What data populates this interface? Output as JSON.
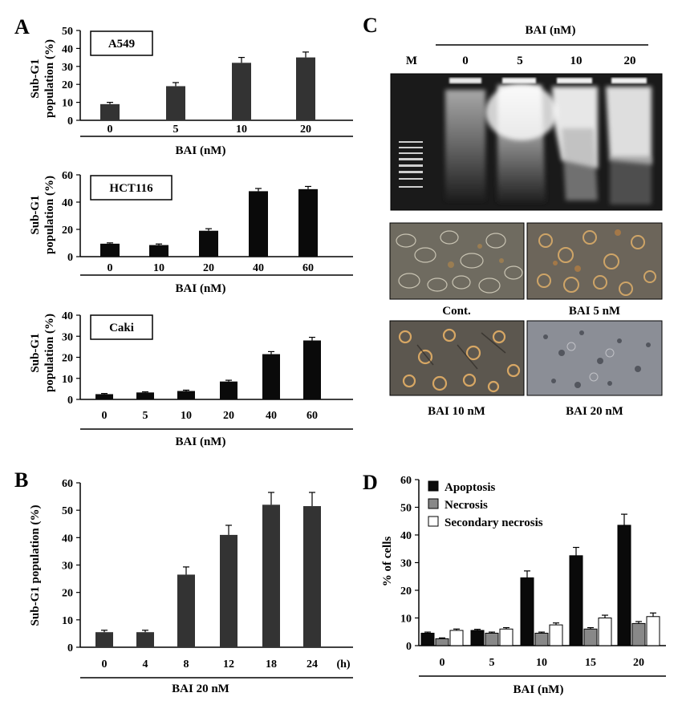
{
  "panel_labels": {
    "A": "A",
    "B": "B",
    "C": "C",
    "D": "D"
  },
  "colors": {
    "dark_bar": "#333333",
    "black_bar": "#0a0a0a",
    "gray_bar": "#888888",
    "white_bar": "#ffffff"
  },
  "chart_data": [
    {
      "id": "A1",
      "type": "bar",
      "box_label": "A549",
      "categories": [
        "0",
        "5",
        "10",
        "20"
      ],
      "values": [
        9,
        19,
        32,
        35
      ],
      "errors": [
        1,
        2,
        3,
        3
      ],
      "ylim": [
        0,
        50
      ],
      "yticks": [
        "0",
        "10",
        "20",
        "30",
        "40",
        "50"
      ],
      "ylabel_line1": "Sub-G1",
      "ylabel_line2": "population (%)",
      "xlabel": "BAI (nM)",
      "bar_color": "#333333"
    },
    {
      "id": "A2",
      "type": "bar",
      "box_label": "HCT116",
      "categories": [
        "0",
        "10",
        "20",
        "40",
        "60"
      ],
      "values": [
        9.5,
        8.5,
        19,
        48,
        49.5
      ],
      "errors": [
        0.6,
        0.8,
        1.5,
        2,
        2
      ],
      "ylim": [
        0,
        60
      ],
      "yticks": [
        "0",
        "20",
        "40",
        "60"
      ],
      "ylabel_line1": "Sub-G1",
      "ylabel_line2": "population (%)",
      "xlabel": "BAI (nM)",
      "bar_color": "#0a0a0a"
    },
    {
      "id": "A3",
      "type": "bar",
      "box_label": "Caki",
      "categories": [
        "0",
        "5",
        "10",
        "20",
        "40",
        "60"
      ],
      "values": [
        2.5,
        3.3,
        4,
        8.5,
        21.5,
        28
      ],
      "errors": [
        0.3,
        0.3,
        0.4,
        0.6,
        1.2,
        1.5
      ],
      "ylim": [
        0,
        40
      ],
      "yticks": [
        "0",
        "10",
        "20",
        "30",
        "40"
      ],
      "ylabel_line1": "Sub-G1",
      "ylabel_line2": "population (%)",
      "xlabel": "BAI (nM)",
      "bar_color": "#0a0a0a"
    },
    {
      "id": "B",
      "type": "bar",
      "categories": [
        "0",
        "4",
        "8",
        "12",
        "18",
        "24"
      ],
      "values": [
        5.5,
        5.5,
        26.5,
        41,
        52,
        51.5
      ],
      "errors": [
        0.7,
        0.7,
        2.8,
        3.5,
        4.5,
        5
      ],
      "ylim": [
        0,
        60
      ],
      "yticks": [
        "0",
        "10",
        "20",
        "30",
        "40",
        "50",
        "60"
      ],
      "ylabel": "Sub-G1 population (%)",
      "xlabel": "BAI 20 nM",
      "x_unit": "(h)",
      "bar_color": "#333333"
    },
    {
      "id": "D",
      "type": "bar",
      "categories": [
        "0",
        "5",
        "10",
        "15",
        "20"
      ],
      "series": [
        {
          "name": "Apoptosis",
          "values": [
            4.5,
            5.5,
            24.5,
            32.5,
            43.5
          ],
          "errors": [
            0.4,
            0.4,
            2.5,
            3,
            4
          ],
          "color": "#0a0a0a"
        },
        {
          "name": "Necrosis",
          "values": [
            2.5,
            4.5,
            4.5,
            6,
            8
          ],
          "errors": [
            0.3,
            0.4,
            0.4,
            0.5,
            0.7
          ],
          "color": "#888888"
        },
        {
          "name": "Secondary necrosis",
          "values": [
            5.5,
            6,
            7.5,
            10,
            10.5
          ],
          "errors": [
            0.5,
            0.5,
            0.7,
            1,
            1.3
          ],
          "color": "#ffffff"
        }
      ],
      "ylim": [
        0,
        60
      ],
      "yticks": [
        "0",
        "10",
        "20",
        "30",
        "40",
        "50",
        "60"
      ],
      "ylabel": "% of cells",
      "xlabel": "BAI (nM)",
      "legend_position": "top-left"
    }
  ],
  "gel": {
    "header": "BAI (nM)",
    "lanes": [
      "M",
      "0",
      "5",
      "10",
      "20"
    ]
  },
  "photos": [
    {
      "label": "Cont."
    },
    {
      "label": "BAI  5 nM"
    },
    {
      "label": "BAI  10 nM"
    },
    {
      "label": "BAI  20 nM"
    }
  ]
}
